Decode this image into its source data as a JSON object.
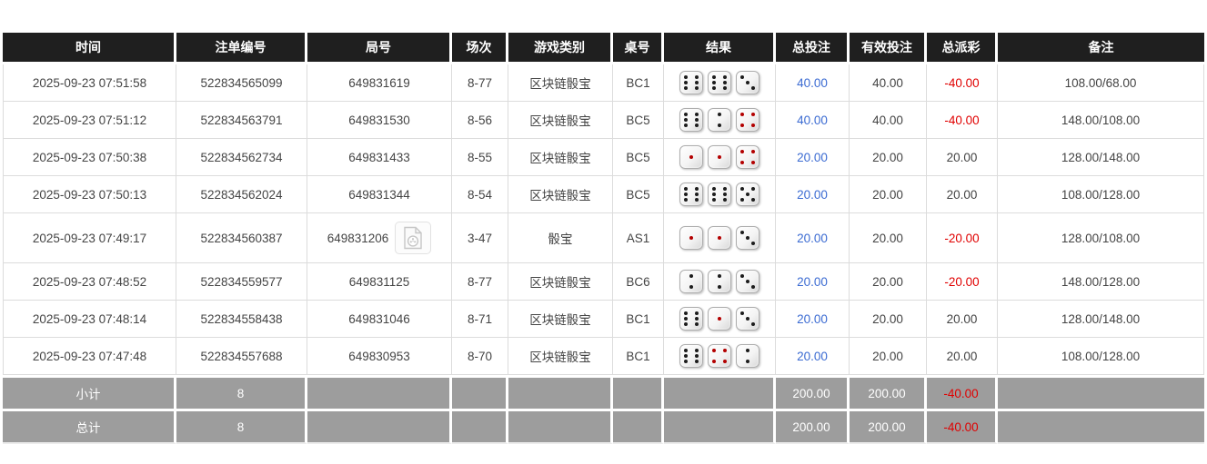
{
  "table": {
    "columns": [
      {
        "key": "time",
        "label": "时间"
      },
      {
        "key": "bet_id",
        "label": "注单编号"
      },
      {
        "key": "round_id",
        "label": "局号"
      },
      {
        "key": "session",
        "label": "场次"
      },
      {
        "key": "game_type",
        "label": "游戏类别"
      },
      {
        "key": "table_id",
        "label": "桌号"
      },
      {
        "key": "result",
        "label": "结果"
      },
      {
        "key": "total_bet",
        "label": "总投注"
      },
      {
        "key": "valid_bet",
        "label": "有效投注"
      },
      {
        "key": "payout",
        "label": "总派彩"
      },
      {
        "key": "remark",
        "label": "备注"
      }
    ],
    "rows": [
      {
        "time": "2025-09-23 07:51:58",
        "bet_id": "522834565099",
        "round_id": "649831619",
        "has_video": false,
        "session": "8-77",
        "game_type": "区块链骰宝",
        "table_id": "BC1",
        "dice": [
          6,
          6,
          3
        ],
        "total_bet": "40.00",
        "valid_bet": "40.00",
        "payout": "-40.00",
        "remark": "108.00/68.00"
      },
      {
        "time": "2025-09-23 07:51:12",
        "bet_id": "522834563791",
        "round_id": "649831530",
        "has_video": false,
        "session": "8-56",
        "game_type": "区块链骰宝",
        "table_id": "BC5",
        "dice": [
          6,
          2,
          4
        ],
        "total_bet": "40.00",
        "valid_bet": "40.00",
        "payout": "-40.00",
        "remark": "148.00/108.00"
      },
      {
        "time": "2025-09-23 07:50:38",
        "bet_id": "522834562734",
        "round_id": "649831433",
        "has_video": false,
        "session": "8-55",
        "game_type": "区块链骰宝",
        "table_id": "BC5",
        "dice": [
          1,
          1,
          4
        ],
        "total_bet": "20.00",
        "valid_bet": "20.00",
        "payout": "20.00",
        "remark": "128.00/148.00"
      },
      {
        "time": "2025-09-23 07:50:13",
        "bet_id": "522834562024",
        "round_id": "649831344",
        "has_video": false,
        "session": "8-54",
        "game_type": "区块链骰宝",
        "table_id": "BC5",
        "dice": [
          6,
          6,
          5
        ],
        "total_bet": "20.00",
        "valid_bet": "20.00",
        "payout": "20.00",
        "remark": "108.00/128.00"
      },
      {
        "time": "2025-09-23 07:49:17",
        "bet_id": "522834560387",
        "round_id": "649831206",
        "has_video": true,
        "session": "3-47",
        "game_type": "骰宝",
        "table_id": "AS1",
        "dice": [
          1,
          1,
          3
        ],
        "total_bet": "20.00",
        "valid_bet": "20.00",
        "payout": "-20.00",
        "remark": "128.00/108.00"
      },
      {
        "time": "2025-09-23 07:48:52",
        "bet_id": "522834559577",
        "round_id": "649831125",
        "has_video": false,
        "session": "8-77",
        "game_type": "区块链骰宝",
        "table_id": "BC6",
        "dice": [
          2,
          2,
          3
        ],
        "total_bet": "20.00",
        "valid_bet": "20.00",
        "payout": "-20.00",
        "remark": "148.00/128.00"
      },
      {
        "time": "2025-09-23 07:48:14",
        "bet_id": "522834558438",
        "round_id": "649831046",
        "has_video": false,
        "session": "8-71",
        "game_type": "区块链骰宝",
        "table_id": "BC1",
        "dice": [
          6,
          1,
          3
        ],
        "total_bet": "20.00",
        "valid_bet": "20.00",
        "payout": "20.00",
        "remark": "128.00/148.00"
      },
      {
        "time": "2025-09-23 07:47:48",
        "bet_id": "522834557688",
        "round_id": "649830953",
        "has_video": false,
        "session": "8-70",
        "game_type": "区块链骰宝",
        "table_id": "BC1",
        "dice": [
          6,
          4,
          2
        ],
        "total_bet": "20.00",
        "valid_bet": "20.00",
        "payout": "20.00",
        "remark": "108.00/128.00"
      }
    ],
    "footer": [
      {
        "label": "小计",
        "count": "8",
        "total_bet": "200.00",
        "valid_bet": "200.00",
        "payout": "-40.00"
      },
      {
        "label": "总计",
        "count": "8",
        "total_bet": "200.00",
        "valid_bet": "200.00",
        "payout": "-40.00"
      }
    ]
  },
  "dice_style": {
    "red_pip_values": [
      1,
      4
    ],
    "pip_red": "#b30000",
    "pip_black": "#1c1c1c"
  },
  "colors": {
    "header_bg": "#1f1f1f",
    "footer_bg": "#9d9d9d",
    "link_blue": "#3b6bd2",
    "negative_red": "#e00000"
  },
  "icons": {
    "video_replay": "video-file-icon"
  }
}
